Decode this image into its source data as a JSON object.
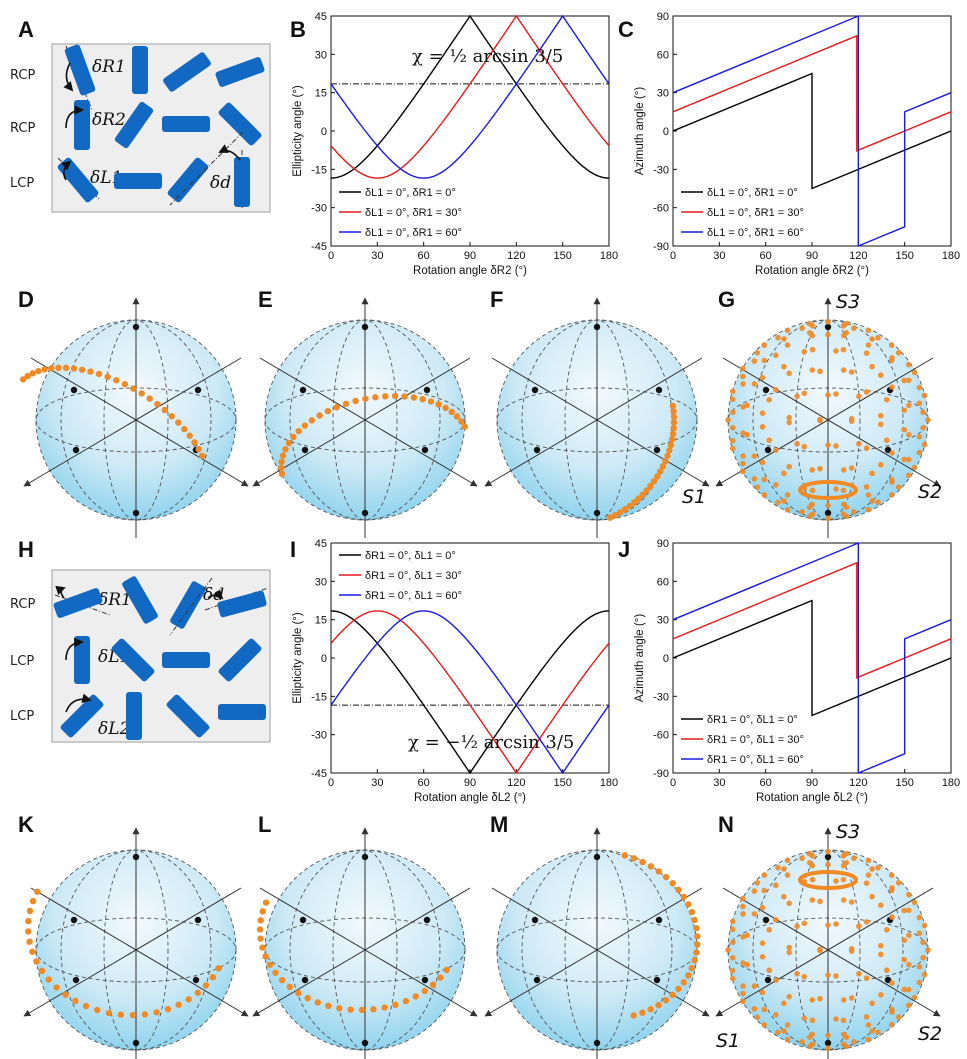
{
  "panels": {
    "A": "A",
    "B": "B",
    "C": "C",
    "D": "D",
    "E": "E",
    "F": "F",
    "G": "G",
    "H": "H",
    "I": "I",
    "J": "J",
    "K": "K",
    "L": "L",
    "M": "M",
    "N": "N"
  },
  "schematic_A": {
    "row_labels": [
      "RCP",
      "RCP",
      "LCP"
    ],
    "delta_labels": [
      "δR1",
      "δR2",
      "δL1",
      "δd"
    ]
  },
  "schematic_H": {
    "row_labels": [
      "RCP",
      "LCP",
      "LCP"
    ],
    "delta_labels": [
      "δR1",
      "δL1",
      "δL2",
      "δd"
    ]
  },
  "formulas": {
    "B": "χ = ½ arcsin 3/5",
    "I": "χ = −½ arcsin 3/5"
  },
  "sphere_labels": {
    "S1": "S1",
    "S2": "S2",
    "S3": "S3"
  },
  "colors": {
    "black": "#000000",
    "red": "#e8191b",
    "blue": "#1a1ae0",
    "dots": "#f08a24",
    "rods": "#1269c4"
  },
  "chart_data": [
    {
      "panel": "B",
      "type": "line",
      "xlabel": "Rotation angle δR2 (°)",
      "ylabel": "Ellipticity angle (°)",
      "xlim": [
        0,
        180
      ],
      "ylim": [
        -45,
        45
      ],
      "xticks": [
        0,
        30,
        60,
        90,
        120,
        150,
        180
      ],
      "yticks": [
        -45,
        -30,
        -15,
        0,
        15,
        30,
        45
      ],
      "reference_line": 18.43,
      "legend": "lower-left",
      "series": [
        {
          "name": "δL1 = 0°, δR1 = 0°",
          "color": "#000000",
          "shift": 0
        },
        {
          "name": "δL1 = 0°, δR1 = 30°",
          "color": "#e8191b",
          "shift": 30
        },
        {
          "name": "δL1 = 0°, δR1 = 60°",
          "color": "#1a1ae0",
          "shift": 60
        }
      ]
    },
    {
      "panel": "C",
      "type": "line",
      "xlabel": "Rotation angle δR2 (°)",
      "ylabel": "Azimuth angle (°)",
      "xlim": [
        0,
        180
      ],
      "ylim": [
        -90,
        90
      ],
      "xticks": [
        0,
        30,
        60,
        90,
        120,
        150,
        180
      ],
      "yticks": [
        -90,
        -60,
        -30,
        0,
        30,
        60,
        90
      ],
      "legend": "lower-left",
      "series": [
        {
          "name": "δL1 = 0°, δR1 = 0°",
          "color": "#000000",
          "shift": 0
        },
        {
          "name": "δL1 = 0°, δR1 = 30°",
          "color": "#e8191b",
          "shift": 30
        },
        {
          "name": "δL1 = 0°, δR1 = 60°",
          "color": "#1a1ae0",
          "shift": 60
        }
      ]
    },
    {
      "panel": "I",
      "type": "line",
      "xlabel": "Rotation angle δL2 (°)",
      "ylabel": "Ellipticity angle (°)",
      "xlim": [
        0,
        180
      ],
      "ylim": [
        -45,
        45
      ],
      "xticks": [
        0,
        30,
        60,
        90,
        120,
        150,
        180
      ],
      "yticks": [
        -45,
        -30,
        -15,
        0,
        15,
        30,
        45
      ],
      "reference_line": -18.43,
      "legend": "upper-left",
      "series": [
        {
          "name": "δR1 = 0°, δL1 = 0°",
          "color": "#000000",
          "shift": 0
        },
        {
          "name": "δR1 = 0°, δL1 = 30°",
          "color": "#e8191b",
          "shift": 30
        },
        {
          "name": "δR1 = 0°, δL1 = 60°",
          "color": "#1a1ae0",
          "shift": 60
        }
      ]
    },
    {
      "panel": "J",
      "type": "line",
      "xlabel": "Rotation angle δL2 (°)",
      "ylabel": "Azimuth angle (°)",
      "xlim": [
        0,
        180
      ],
      "ylim": [
        -90,
        90
      ],
      "xticks": [
        0,
        30,
        60,
        90,
        120,
        150,
        180
      ],
      "yticks": [
        -90,
        -60,
        -30,
        0,
        30,
        60,
        90
      ],
      "legend": "lower-left",
      "series": [
        {
          "name": "δR1 = 0°, δL1 = 0°",
          "color": "#000000",
          "shift": 0
        },
        {
          "name": "δR1 = 0°, δL1 = 30°",
          "color": "#e8191b",
          "shift": 30
        },
        {
          "name": "δR1 = 0°, δL1 = 60°",
          "color": "#1a1ae0",
          "shift": 60
        }
      ]
    }
  ]
}
